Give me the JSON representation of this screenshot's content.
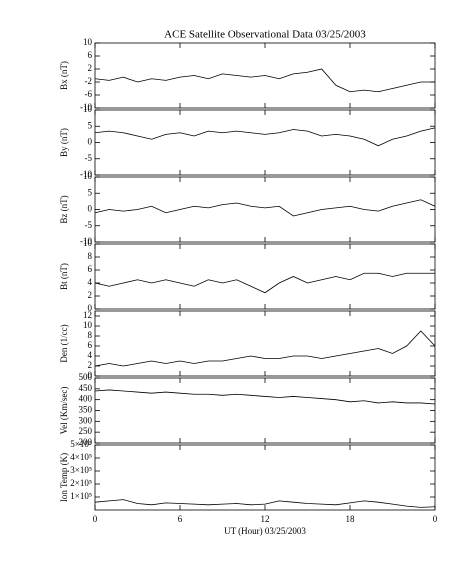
{
  "chart_data": [
    {
      "type": "line",
      "title": "ACE Satellite Observational Data   03/25/2003",
      "ylabel": "Bx (nT)",
      "color": "#000000",
      "x": [
        0,
        1,
        2,
        3,
        4,
        5,
        6,
        7,
        8,
        9,
        10,
        11,
        12,
        13,
        14,
        15,
        16,
        17,
        18,
        19,
        20,
        21,
        22,
        23,
        24
      ],
      "values": [
        -1,
        -1.5,
        -0.5,
        -2,
        -1,
        -1.5,
        -0.5,
        0,
        -1,
        0.5,
        0,
        -0.5,
        0,
        -1,
        0.5,
        1,
        2,
        -3,
        -5,
        -4.5,
        -5,
        -4,
        -3,
        -2,
        -2
      ],
      "xlim": [
        0,
        24
      ],
      "ylim": [
        -10,
        10
      ],
      "yticks": [
        -10,
        -6,
        -2,
        2,
        6,
        10
      ]
    },
    {
      "type": "line",
      "ylabel": "By (nT)",
      "color": "#000000",
      "x": [
        0,
        1,
        2,
        3,
        4,
        5,
        6,
        7,
        8,
        9,
        10,
        11,
        12,
        13,
        14,
        15,
        16,
        17,
        18,
        19,
        20,
        21,
        22,
        23,
        24
      ],
      "values": [
        3,
        3.5,
        3,
        2,
        1,
        2.5,
        3,
        2,
        3.5,
        3,
        3.5,
        3,
        2.5,
        3,
        4,
        3.5,
        2,
        2.5,
        2,
        1,
        -1,
        1,
        2,
        3.5,
        4.5
      ],
      "xlim": [
        0,
        24
      ],
      "ylim": [
        -10,
        10
      ],
      "yticks": [
        -10,
        -5,
        0,
        5,
        10
      ]
    },
    {
      "type": "line",
      "ylabel": "Bz (nT)",
      "color": "#000000",
      "x": [
        0,
        1,
        2,
        3,
        4,
        5,
        6,
        7,
        8,
        9,
        10,
        11,
        12,
        13,
        14,
        15,
        16,
        17,
        18,
        19,
        20,
        21,
        22,
        23,
        24
      ],
      "values": [
        -1,
        0,
        -0.5,
        0,
        1,
        -1,
        0,
        1,
        0.5,
        1.5,
        2,
        1,
        0.5,
        1,
        -2,
        -1,
        0,
        0.5,
        1,
        0,
        -0.5,
        1,
        2,
        3,
        1
      ],
      "xlim": [
        0,
        24
      ],
      "ylim": [
        -10,
        10
      ],
      "yticks": [
        -10,
        -5,
        0,
        5,
        10
      ]
    },
    {
      "type": "line",
      "ylabel": "Bt (nT)",
      "color": "#000000",
      "x": [
        0,
        1,
        2,
        3,
        4,
        5,
        6,
        7,
        8,
        9,
        10,
        11,
        12,
        13,
        14,
        15,
        16,
        17,
        18,
        19,
        20,
        21,
        22,
        23,
        24
      ],
      "values": [
        4,
        3.5,
        4,
        4.5,
        4,
        4.5,
        4,
        3.5,
        4.5,
        4,
        4.5,
        3.5,
        2.5,
        4,
        5,
        4,
        4.5,
        5,
        4.5,
        5.5,
        5.5,
        5,
        5.5,
        5.5,
        5.5
      ],
      "xlim": [
        0,
        24
      ],
      "ylim": [
        0,
        10
      ],
      "yticks": [
        0,
        2,
        4,
        6,
        8,
        10
      ]
    },
    {
      "type": "line",
      "ylabel": "Den (1/cc)",
      "color": "#000000",
      "x": [
        0,
        1,
        2,
        3,
        4,
        5,
        6,
        7,
        8,
        9,
        10,
        11,
        12,
        13,
        14,
        15,
        16,
        17,
        18,
        19,
        20,
        21,
        22,
        23,
        24
      ],
      "values": [
        2,
        2.5,
        2,
        2.5,
        3,
        2.5,
        3,
        2.5,
        3,
        3,
        3.5,
        4,
        3.5,
        3.5,
        4,
        4,
        3.5,
        4,
        4.5,
        5,
        5.5,
        4.5,
        6,
        9,
        6
      ],
      "xlim": [
        0,
        24
      ],
      "ylim": [
        0,
        13
      ],
      "yticks": [
        0,
        2,
        4,
        6,
        8,
        10,
        12
      ]
    },
    {
      "type": "line",
      "ylabel": "Vel (Km/sec)",
      "color": "#000000",
      "x": [
        0,
        1,
        2,
        3,
        4,
        5,
        6,
        7,
        8,
        9,
        10,
        11,
        12,
        13,
        14,
        15,
        16,
        17,
        18,
        19,
        20,
        21,
        22,
        23,
        24
      ],
      "values": [
        440,
        445,
        440,
        435,
        430,
        435,
        430,
        425,
        425,
        420,
        425,
        420,
        415,
        410,
        415,
        410,
        405,
        400,
        390,
        395,
        385,
        390,
        385,
        385,
        380
      ],
      "xlim": [
        0,
        24
      ],
      "ylim": [
        200,
        500
      ],
      "yticks": [
        200,
        250,
        300,
        350,
        400,
        450,
        500
      ]
    },
    {
      "type": "line",
      "ylabel": "Ion Temp (K)",
      "xlabel": "UT (Hour)  03/25/2003",
      "color": "#000000",
      "x": [
        0,
        1,
        2,
        3,
        4,
        5,
        6,
        7,
        8,
        9,
        10,
        11,
        12,
        13,
        14,
        15,
        16,
        17,
        18,
        19,
        20,
        21,
        22,
        23,
        24
      ],
      "values": [
        60000,
        70000,
        80000,
        50000,
        40000,
        55000,
        50000,
        45000,
        40000,
        45000,
        50000,
        40000,
        45000,
        70000,
        60000,
        50000,
        45000,
        40000,
        55000,
        70000,
        60000,
        45000,
        30000,
        20000,
        25000
      ],
      "xlim": [
        0,
        24
      ],
      "ylim": [
        0,
        500000
      ],
      "yticks": [
        {
          "value": 100000,
          "label": "1×10⁵"
        },
        {
          "value": 200000,
          "label": "2×10⁵"
        },
        {
          "value": 300000,
          "label": "3×10⁵"
        },
        {
          "value": 400000,
          "label": "4×10⁵"
        },
        {
          "value": 500000,
          "label": "5×10⁵"
        }
      ],
      "xticks": [
        0,
        6,
        12,
        18,
        {
          "value": 24,
          "label": "0"
        }
      ]
    }
  ]
}
